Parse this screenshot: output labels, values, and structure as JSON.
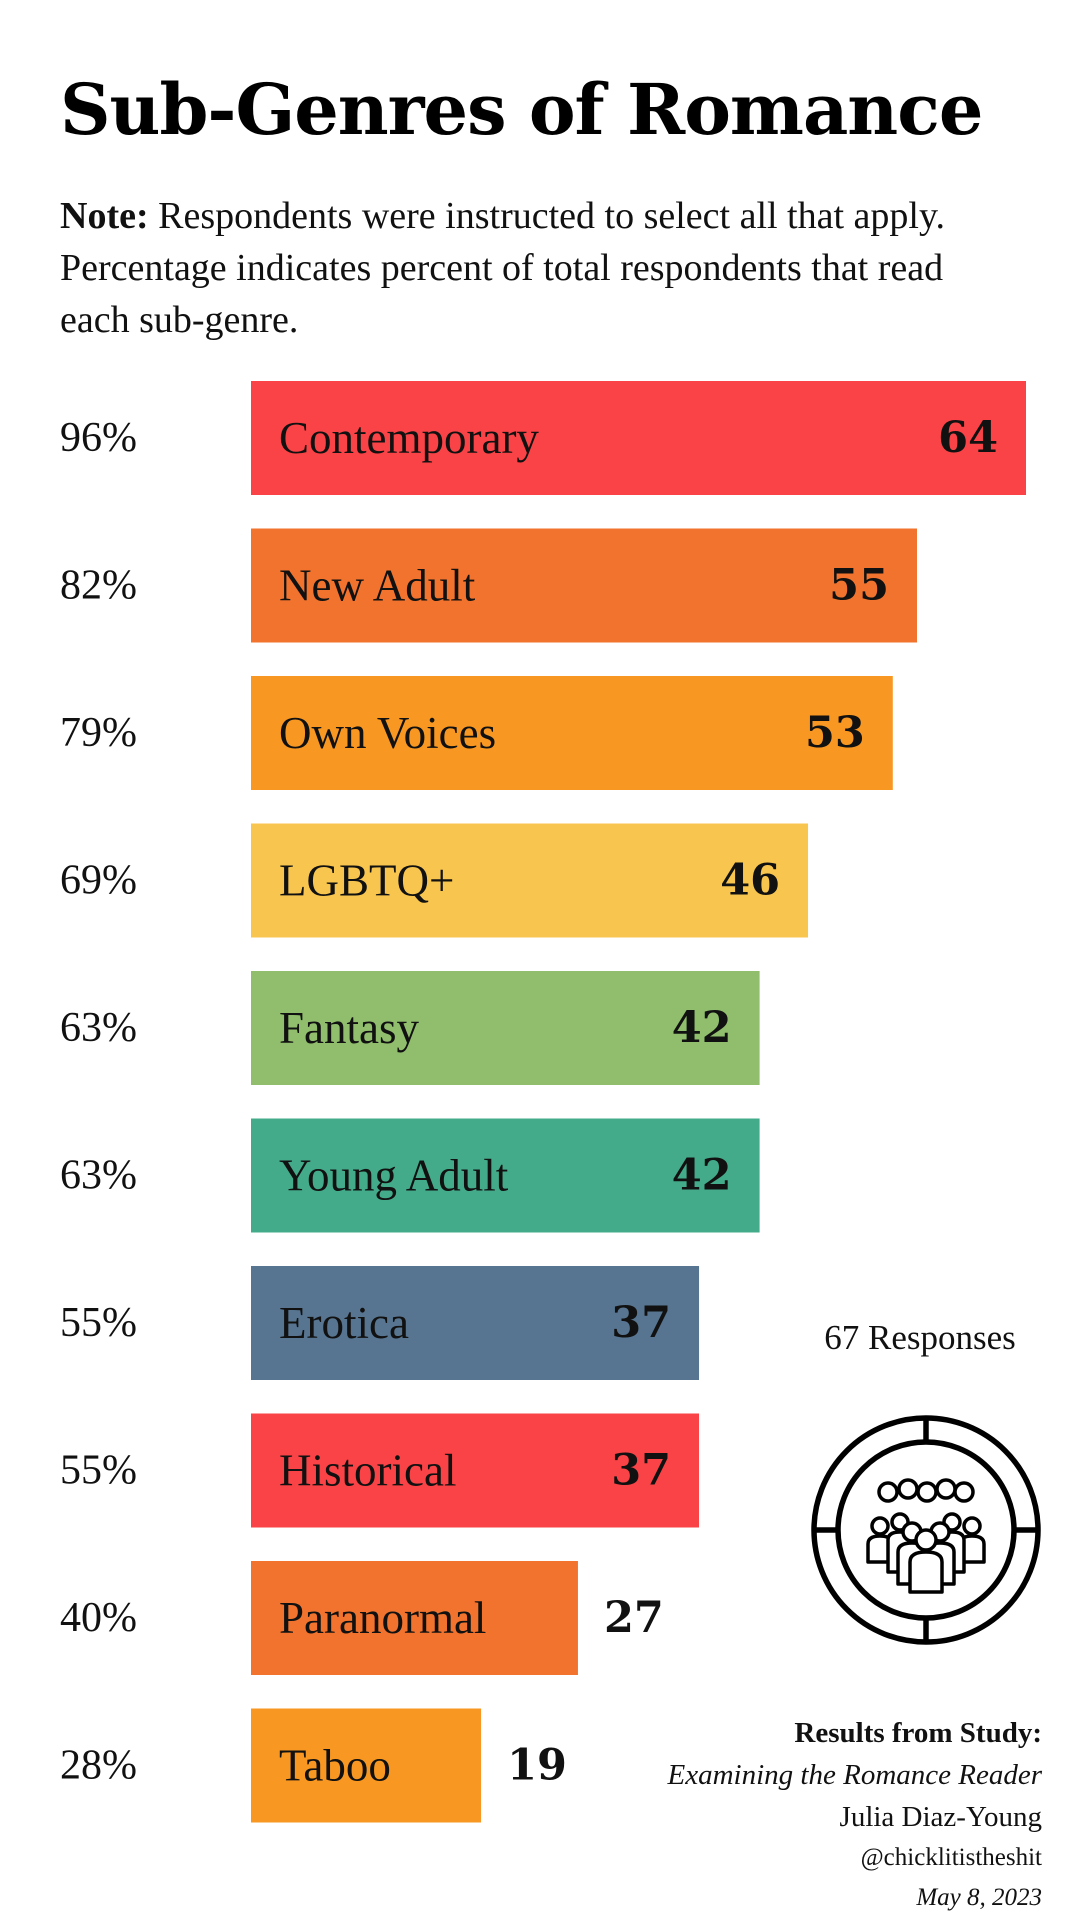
{
  "chart_data": {
    "type": "bar",
    "orientation": "horizontal",
    "title": "Sub-Genres of Romance",
    "note_label": "Note:",
    "note_text": "Respondents were instructed to select all that apply. Percentage indicates percent of total respondents that read each sub-genre.",
    "categories": [
      "Contemporary",
      "New Adult",
      "Own Voices",
      "LGBTQ+",
      "Fantasy",
      "Young Adult",
      "Erotica",
      "Historical",
      "Paranormal",
      "Taboo"
    ],
    "values": [
      64,
      55,
      53,
      46,
      42,
      42,
      37,
      37,
      27,
      19
    ],
    "percent_labels": [
      "96%",
      "82%",
      "79%",
      "69%",
      "63%",
      "63%",
      "55%",
      "55%",
      "40%",
      "28%"
    ],
    "colors": [
      "#F94346",
      "#F2732D",
      "#F89722",
      "#F8C64F",
      "#90BE6C",
      "#43AB8A",
      "#577590",
      "#F94346",
      "#F2732D",
      "#F89722"
    ],
    "value_label_position": [
      "inside",
      "inside",
      "inside",
      "inside",
      "inside",
      "inside",
      "inside",
      "inside",
      "outside",
      "outside"
    ],
    "xlim": [
      0,
      64
    ],
    "grid": false,
    "legend": "none"
  },
  "responses_text": "67 Responses",
  "badge_icon": "people-group-icon",
  "credits": {
    "heading": "Results from Study:",
    "study": "Examining the Romance Reader",
    "author": "Julia Diaz-Young",
    "handle": "@chicklitistheshit",
    "date": "May 8, 2023"
  }
}
